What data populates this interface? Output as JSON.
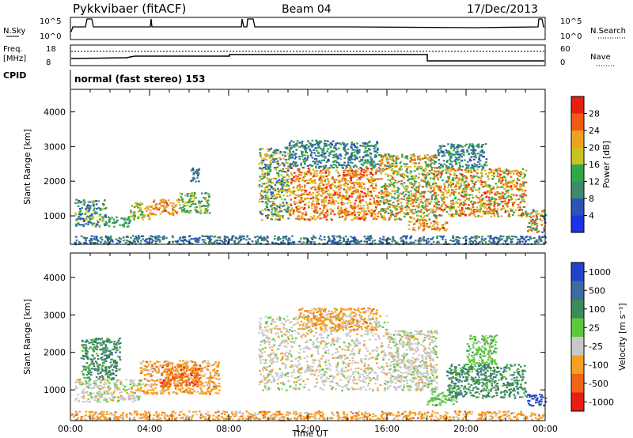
{
  "header": {
    "title": "Pykkvibaer (fitACF)",
    "beam": "Beam 04",
    "date": "17/Dec/2013"
  },
  "nsky": {
    "label": "N.Sky",
    "yticks_left": [
      "10^5",
      "10^0"
    ],
    "yticks_right": [
      "10^5",
      "10^0"
    ],
    "right_label": "N.Search"
  },
  "freq": {
    "label_line1": "Freq.",
    "label_line2": "[MHz]",
    "yticks_left": [
      "18",
      "8"
    ],
    "yticks_right": [
      "60",
      "0"
    ],
    "right_label": "Nave"
  },
  "cpid": {
    "label": "CPID",
    "text": "normal (fast stereo) 153"
  },
  "chart_data": [
    {
      "type": "heatmap",
      "quantity": "Power",
      "ylabel": "Slant Range [km]",
      "ylim": [
        180,
        4650
      ],
      "yticks": [
        1000,
        2000,
        3000,
        4000
      ],
      "xlim": [
        0,
        24
      ],
      "colorbar_label": "Power [dB]",
      "colorbar_ticks": [
        "4",
        "8",
        "12",
        "16",
        "20",
        "24",
        "28"
      ],
      "colorbar_range": [
        0,
        32
      ],
      "colors": [
        "#1e32e6",
        "#2a54b8",
        "#3d8a6a",
        "#2ea84a",
        "#c8c41e",
        "#f0a020",
        "#f05a14",
        "#e61e14"
      ],
      "regions": [
        {
          "t": [
            0.2,
            1.8
          ],
          "r": [
            700,
            1500
          ],
          "v": [
            4,
            20
          ]
        },
        {
          "t": [
            1.8,
            3.0
          ],
          "r": [
            700,
            1000
          ],
          "v": [
            8,
            16
          ]
        },
        {
          "t": [
            3.0,
            4.0
          ],
          "r": [
            900,
            1400
          ],
          "v": [
            12,
            24
          ]
        },
        {
          "t": [
            4.0,
            5.5
          ],
          "r": [
            1050,
            1500
          ],
          "v": [
            16,
            30
          ]
        },
        {
          "t": [
            5.5,
            7.0
          ],
          "r": [
            1100,
            1700
          ],
          "v": [
            8,
            20
          ]
        },
        {
          "t": [
            6.0,
            6.5
          ],
          "r": [
            2000,
            2400
          ],
          "v": [
            4,
            12
          ]
        },
        {
          "t": [
            9.5,
            11.0
          ],
          "r": [
            900,
            3000
          ],
          "v": [
            4,
            24
          ]
        },
        {
          "t": [
            11.0,
            15.5
          ],
          "r": [
            900,
            2400
          ],
          "v": [
            16,
            30
          ]
        },
        {
          "t": [
            11.0,
            15.5
          ],
          "r": [
            2400,
            3200
          ],
          "v": [
            4,
            16
          ]
        },
        {
          "t": [
            15.5,
            18.5
          ],
          "r": [
            900,
            2800
          ],
          "v": [
            8,
            28
          ]
        },
        {
          "t": [
            17.0,
            19.0
          ],
          "r": [
            600,
            900
          ],
          "v": [
            16,
            30
          ]
        },
        {
          "t": [
            18.5,
            23.0
          ],
          "r": [
            1000,
            2400
          ],
          "v": [
            12,
            30
          ]
        },
        {
          "t": [
            18.5,
            21.0
          ],
          "r": [
            2400,
            3100
          ],
          "v": [
            4,
            16
          ]
        },
        {
          "t": [
            23.0,
            24.0
          ],
          "r": [
            550,
            1200
          ],
          "v": [
            4,
            28
          ]
        },
        {
          "t": [
            0.0,
            24.0
          ],
          "r": [
            200,
            450
          ],
          "v": [
            4,
            12
          ]
        }
      ]
    },
    {
      "type": "heatmap",
      "quantity": "Velocity",
      "ylabel": "Slant Range [km]",
      "xlabel": "Time UT",
      "ylim": [
        180,
        4650
      ],
      "yticks": [
        1000,
        2000,
        3000,
        4000
      ],
      "xlim": [
        0,
        24
      ],
      "xtick_labels": [
        "00:00",
        "04:00",
        "08:00",
        "12:00",
        "16:00",
        "20:00",
        "00:00"
      ],
      "colorbar_label": "Velocity [m s⁻¹]",
      "colorbar_ticks": [
        "1000",
        "500",
        "100",
        "25",
        "-25",
        "-100",
        "-500",
        "-1000"
      ],
      "colors": [
        "#2244cc",
        "#3d6aa0",
        "#3d8a5a",
        "#5cc83c",
        "#c8c8c8",
        "#f5a01e",
        "#f06414",
        "#e61e14"
      ],
      "regions": [
        {
          "t": [
            0.2,
            3.5
          ],
          "r": [
            700,
            1300
          ],
          "c": 4
        },
        {
          "t": [
            0.5,
            2.5
          ],
          "r": [
            1300,
            2400
          ],
          "c": 2
        },
        {
          "t": [
            3.5,
            7.5
          ],
          "r": [
            900,
            1800
          ],
          "c": 5
        },
        {
          "t": [
            4.5,
            6.5
          ],
          "r": [
            1100,
            1700
          ],
          "c": 6
        },
        {
          "t": [
            9.5,
            16.0
          ],
          "r": [
            1000,
            3000
          ],
          "c": 4
        },
        {
          "t": [
            11.5,
            15.5
          ],
          "r": [
            2600,
            3200
          ],
          "c": 5
        },
        {
          "t": [
            16.0,
            18.5
          ],
          "r": [
            1000,
            2600
          ],
          "c": 4
        },
        {
          "t": [
            18.0,
            19.5
          ],
          "r": [
            600,
            1000
          ],
          "c": 3
        },
        {
          "t": [
            19.0,
            23.0
          ],
          "r": [
            800,
            1700
          ],
          "c": 2
        },
        {
          "t": [
            20.0,
            21.5
          ],
          "r": [
            1700,
            2500
          ],
          "c": 3
        },
        {
          "t": [
            23.0,
            24.0
          ],
          "r": [
            600,
            900
          ],
          "c": 0
        },
        {
          "t": [
            0.0,
            24.0
          ],
          "r": [
            200,
            450
          ],
          "c": 5
        }
      ]
    }
  ]
}
